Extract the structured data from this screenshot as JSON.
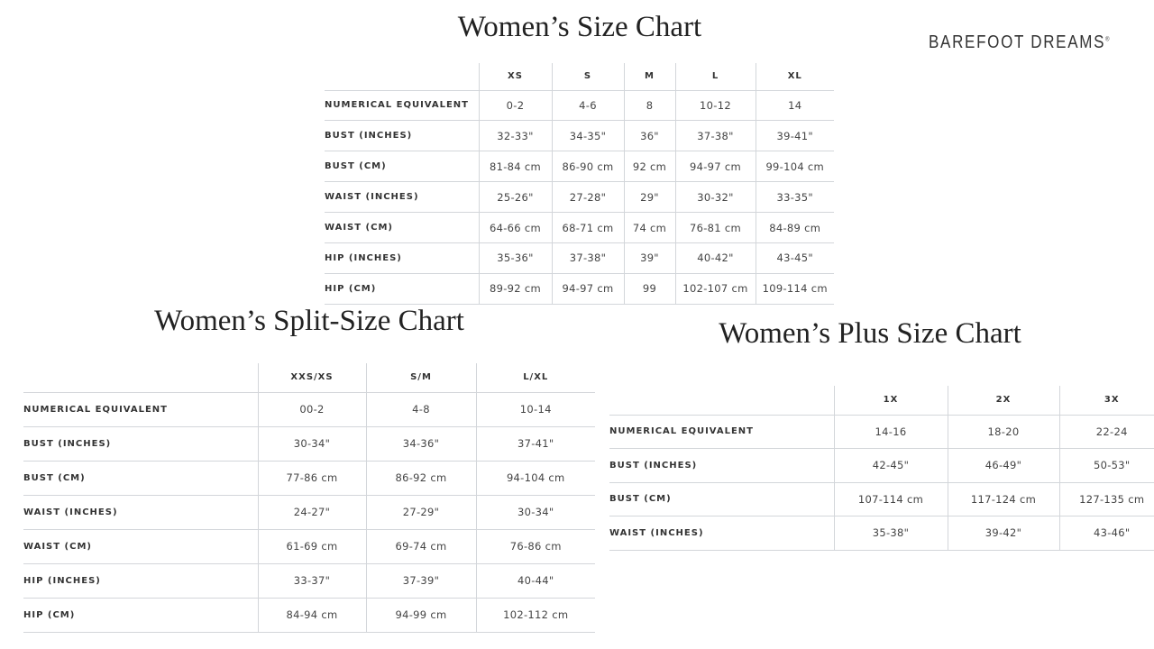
{
  "logo": "BAREFOOT DREAMS",
  "charts": [
    {
      "title": "Women’s Size Chart",
      "columns": [
        "XS",
        "S",
        "M",
        "L",
        "XL"
      ],
      "rows": [
        {
          "label": "NUMERICAL EQUIVALENT",
          "values": [
            "0-2",
            "4-6",
            "8",
            "10-12",
            "14"
          ]
        },
        {
          "label": "BUST (INCHES)",
          "values": [
            "32-33\"",
            "34-35\"",
            "36\"",
            "37-38\"",
            "39-41\""
          ]
        },
        {
          "label": "BUST (CM)",
          "values": [
            "81-84 cm",
            "86-90 cm",
            "92 cm",
            "94-97 cm",
            "99-104 cm"
          ]
        },
        {
          "label": "WAIST (INCHES)",
          "values": [
            "25-26\"",
            "27-28\"",
            "29\"",
            "30-32\"",
            "33-35\""
          ]
        },
        {
          "label": "WAIST (CM)",
          "values": [
            "64-66 cm",
            "68-71 cm",
            "74 cm",
            "76-81 cm",
            "84-89 cm"
          ]
        },
        {
          "label": "HIP (INCHES)",
          "values": [
            "35-36\"",
            "37-38\"",
            "39\"",
            "40-42\"",
            "43-45\""
          ]
        },
        {
          "label": "HIP (CM)",
          "values": [
            "89-92 cm",
            "94-97 cm",
            "99",
            "102-107 cm",
            "109-114 cm"
          ]
        }
      ]
    },
    {
      "title": "Women’s Split-Size Chart",
      "columns": [
        "XXS/XS",
        "S/M",
        "L/XL"
      ],
      "rows": [
        {
          "label": "NUMERICAL EQUIVALENT",
          "values": [
            "00-2",
            "4-8",
            "10-14"
          ]
        },
        {
          "label": "BUST (INCHES)",
          "values": [
            "30-34\"",
            "34-36\"",
            "37-41\""
          ]
        },
        {
          "label": "BUST (CM)",
          "values": [
            "77-86 cm",
            "86-92 cm",
            "94-104 cm"
          ]
        },
        {
          "label": "WAIST (INCHES)",
          "values": [
            "24-27\"",
            "27-29\"",
            "30-34\""
          ]
        },
        {
          "label": "WAIST (CM)",
          "values": [
            "61-69 cm",
            "69-74 cm",
            "76-86 cm"
          ]
        },
        {
          "label": "HIP (INCHES)",
          "values": [
            "33-37\"",
            "37-39\"",
            "40-44\""
          ]
        },
        {
          "label": "HIP (CM)",
          "values": [
            "84-94 cm",
            "94-99 cm",
            "102-112 cm"
          ]
        }
      ]
    },
    {
      "title": "Women’s Plus Size Chart",
      "columns": [
        "1X",
        "2X",
        "3X"
      ],
      "rows": [
        {
          "label": "NUMERICAL EQUIVALENT",
          "values": [
            "14-16",
            "18-20",
            "22-24"
          ]
        },
        {
          "label": "BUST (INCHES)",
          "values": [
            "42-45\"",
            "46-49\"",
            "50-53\""
          ]
        },
        {
          "label": "BUST (CM)",
          "values": [
            "107-114 cm",
            "117-124 cm",
            "127-135 cm"
          ]
        },
        {
          "label": "WAIST (INCHES)",
          "values": [
            "35-38\"",
            "39-42\"",
            "43-46\""
          ]
        }
      ]
    }
  ]
}
